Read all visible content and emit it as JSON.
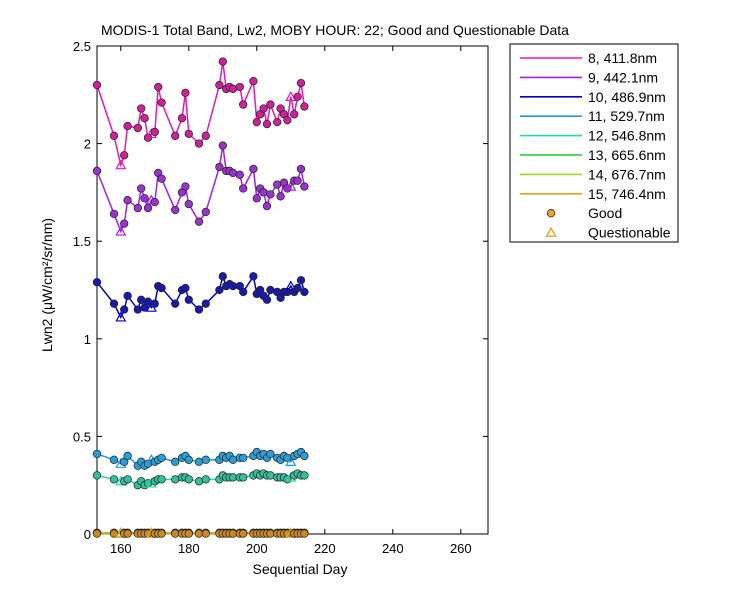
{
  "chart_data": {
    "type": "line",
    "title": "MODIS-1 Total Band, Lw2, MOBY HOUR: 22;  Good and Questionable Data",
    "xlabel": "Sequential Day",
    "ylabel": "Lwn2 (μW/cm²/sr/nm)",
    "xlim": [
      153,
      268
    ],
    "ylim": [
      0,
      2.5
    ],
    "xticks": [
      160,
      180,
      200,
      220,
      240,
      260
    ],
    "yticks": [
      0,
      0.5,
      1,
      1.5,
      2,
      2.5
    ],
    "ytick_labels": [
      "0",
      "0.5",
      "1",
      "1.5",
      "2",
      "2.5"
    ],
    "grid": false,
    "legend_position": "top-right outside",
    "x": [
      153,
      158,
      160,
      161,
      162,
      165,
      166,
      167,
      168,
      169,
      170,
      171,
      172,
      176,
      178,
      179,
      180,
      183,
      185,
      189,
      190,
      191,
      192,
      193,
      195,
      196,
      199,
      200,
      201,
      202,
      203,
      204,
      206,
      207,
      208,
      209,
      210,
      211,
      212,
      213,
      214
    ],
    "quality": [
      "g",
      "g",
      "q",
      "g",
      "g",
      "g",
      "g",
      "g",
      "g",
      "q",
      "g",
      "g",
      "g",
      "g",
      "g",
      "g",
      "g",
      "g",
      "g",
      "g",
      "g",
      "g",
      "g",
      "g",
      "g",
      "g",
      "g",
      "g",
      "g",
      "g",
      "g",
      "g",
      "g",
      "g",
      "g",
      "g",
      "q",
      "g",
      "g",
      "g",
      "g"
    ],
    "series": [
      {
        "name": "8, 411.8nm",
        "color": "#e619b3",
        "marker": "#cc2299",
        "values": [
          2.3,
          2.04,
          1.89,
          1.94,
          2.09,
          2.08,
          2.18,
          2.13,
          2.03,
          2.05,
          2.06,
          2.29,
          2.21,
          2.04,
          2.13,
          2.26,
          2.05,
          2.0,
          2.04,
          2.3,
          2.42,
          2.28,
          2.29,
          2.28,
          2.29,
          2.2,
          2.32,
          2.11,
          2.15,
          2.18,
          2.1,
          2.2,
          2.11,
          2.18,
          2.15,
          2.12,
          2.24,
          2.15,
          2.24,
          2.31,
          2.19
        ]
      },
      {
        "name": "9, 442.1nm",
        "color": "#a020f0",
        "marker": "#9933cc",
        "values": [
          1.86,
          1.64,
          1.55,
          1.59,
          1.71,
          1.67,
          1.77,
          1.72,
          1.67,
          1.71,
          1.7,
          1.85,
          1.82,
          1.66,
          1.75,
          1.78,
          1.69,
          1.6,
          1.65,
          1.88,
          1.99,
          1.86,
          1.86,
          1.85,
          1.84,
          1.77,
          1.87,
          1.72,
          1.77,
          1.75,
          1.68,
          1.74,
          1.79,
          1.73,
          1.8,
          1.77,
          1.78,
          1.81,
          1.81,
          1.87,
          1.78
        ]
      },
      {
        "name": "10, 486.9nm",
        "color": "#0000cd",
        "marker": "#1a1aaa",
        "values": [
          1.29,
          1.18,
          1.11,
          1.15,
          1.22,
          1.15,
          1.2,
          1.16,
          1.19,
          1.16,
          1.18,
          1.27,
          1.26,
          1.18,
          1.25,
          1.26,
          1.2,
          1.15,
          1.18,
          1.25,
          1.32,
          1.27,
          1.28,
          1.27,
          1.27,
          1.24,
          1.32,
          1.23,
          1.25,
          1.22,
          1.2,
          1.25,
          1.24,
          1.21,
          1.24,
          1.24,
          1.27,
          1.24,
          1.26,
          1.3,
          1.24
        ]
      },
      {
        "name": "11, 529.7nm",
        "color": "#1e9be6",
        "marker": "#2a9ed6",
        "values": [
          0.41,
          0.38,
          0.36,
          0.37,
          0.4,
          0.35,
          0.37,
          0.35,
          0.36,
          0.38,
          0.37,
          0.38,
          0.39,
          0.37,
          0.39,
          0.4,
          0.38,
          0.37,
          0.38,
          0.38,
          0.4,
          0.39,
          0.4,
          0.38,
          0.39,
          0.39,
          0.4,
          0.42,
          0.4,
          0.41,
          0.39,
          0.41,
          0.39,
          0.38,
          0.4,
          0.39,
          0.37,
          0.4,
          0.41,
          0.42,
          0.4
        ]
      },
      {
        "name": "12, 546.8nm",
        "color": "#2ad4b4",
        "marker": "#33c09a",
        "values": [
          0.3,
          0.28,
          0.27,
          0.27,
          0.28,
          0.25,
          0.27,
          0.25,
          0.26,
          0.26,
          0.27,
          0.28,
          0.28,
          0.28,
          0.29,
          0.29,
          0.28,
          0.27,
          0.28,
          0.28,
          0.3,
          0.29,
          0.29,
          0.29,
          0.29,
          0.29,
          0.3,
          0.31,
          0.3,
          0.31,
          0.3,
          0.3,
          0.29,
          0.29,
          0.29,
          0.28,
          0.29,
          0.3,
          0.31,
          0.3,
          0.3
        ]
      },
      {
        "name": "13, 665.6nm",
        "color": "#22cc22",
        "marker": "#22aa44",
        "values": [
          0.006,
          0.006,
          0.006,
          0.006,
          0.006,
          0.006,
          0.006,
          0.006,
          0.006,
          0.006,
          0.006,
          0.006,
          0.006,
          0.006,
          0.006,
          0.006,
          0.006,
          0.006,
          0.006,
          0.006,
          0.006,
          0.006,
          0.006,
          0.006,
          0.006,
          0.006,
          0.006,
          0.006,
          0.006,
          0.006,
          0.006,
          0.006,
          0.006,
          0.006,
          0.006,
          0.006,
          0.006,
          0.006,
          0.006,
          0.006,
          0.006
        ]
      },
      {
        "name": "14, 676.7nm",
        "color": "#99dd22",
        "marker": "#88bb33",
        "values": [
          0.005,
          0.005,
          0.005,
          0.005,
          0.005,
          0.005,
          0.005,
          0.005,
          0.005,
          0.005,
          0.005,
          0.005,
          0.005,
          0.005,
          0.005,
          0.005,
          0.005,
          0.005,
          0.005,
          0.005,
          0.005,
          0.005,
          0.005,
          0.005,
          0.005,
          0.005,
          0.005,
          0.005,
          0.005,
          0.005,
          0.005,
          0.005,
          0.005,
          0.005,
          0.005,
          0.005,
          0.005,
          0.005,
          0.005,
          0.005,
          0.005
        ]
      },
      {
        "name": "15, 746.4nm",
        "color": "#e6a020",
        "marker": "#cc8822",
        "values": [
          0.002,
          0.002,
          0.002,
          0.002,
          0.002,
          0.002,
          0.002,
          0.002,
          0.002,
          0.002,
          0.002,
          0.002,
          0.002,
          0.002,
          0.002,
          0.002,
          0.002,
          0.002,
          0.002,
          0.002,
          0.002,
          0.002,
          0.002,
          0.002,
          0.002,
          0.002,
          0.002,
          0.002,
          0.002,
          0.002,
          0.002,
          0.002,
          0.002,
          0.002,
          0.002,
          0.002,
          0.002,
          0.002,
          0.002,
          0.002,
          0.002
        ]
      }
    ],
    "legend_markers": [
      {
        "label": "Good",
        "symbol": "circle",
        "color": "#f0a030"
      },
      {
        "label": "Questionable",
        "symbol": "triangle",
        "color": "#f0a030"
      }
    ]
  }
}
